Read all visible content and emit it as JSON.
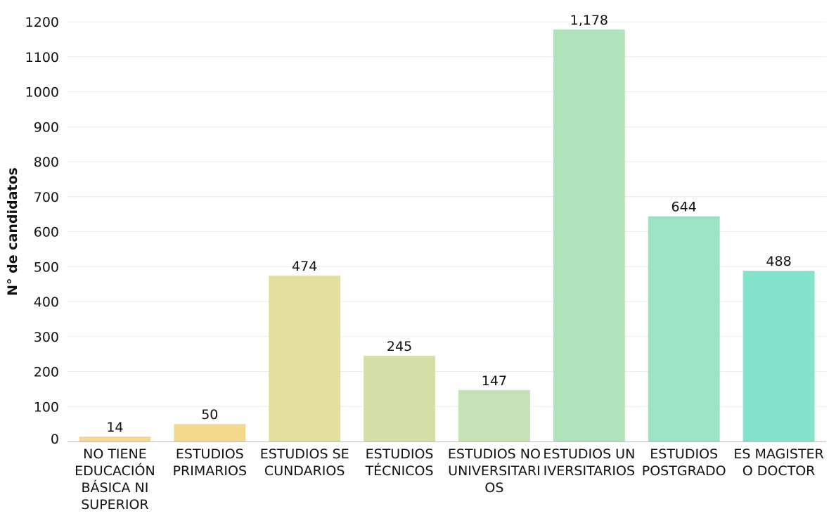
{
  "chart_data": {
    "type": "bar",
    "ylabel": "N° de candidatos",
    "xlabel": "",
    "title": "",
    "ylim": [
      0,
      1200
    ],
    "yticks": [
      0,
      100,
      200,
      300,
      400,
      500,
      600,
      700,
      800,
      900,
      1000,
      1100,
      1200
    ],
    "grid": true,
    "categories": [
      "NO TIENE EDUCACIÓN BÁSICA NI SUPERIOR",
      "ESTUDIOS PRIMARIOS",
      "ESTUDIOS SECUNDARIOS",
      "ESTUDIOS TÉCNICOS",
      "ESTUDIOS NO UNIVERSITARIOS",
      "ESTUDIOS UNIVERSITARIOS",
      "ESTUDIOS POSTGRADO",
      "ES MAGISTER O DOCTOR"
    ],
    "category_lines": [
      [
        "NO TIENE",
        "EDUCACIÓN",
        "BÁSICA NI",
        "SUPERIOR"
      ],
      [
        "ESTUDIOS",
        "PRIMARIOS"
      ],
      [
        "ESTUDIOS SE",
        "CUNDARIOS"
      ],
      [
        "ESTUDIOS",
        "TÉCNICOS"
      ],
      [
        "ESTUDIOS NO",
        "UNIVERSITARI",
        "OS"
      ],
      [
        "ESTUDIOS UN",
        "IVERSITARIOS"
      ],
      [
        "ESTUDIOS",
        "POSTGRADO"
      ],
      [
        "ES MAGISTER",
        "O DOCTOR"
      ]
    ],
    "values": [
      14,
      50,
      474,
      245,
      147,
      1178,
      644,
      488
    ],
    "value_labels": [
      "14",
      "50",
      "474",
      "245",
      "147",
      "1,178",
      "644",
      "488"
    ],
    "colors": [
      "#f7d893",
      "#f2d98c",
      "#e3df9f",
      "#d5e0a6",
      "#c4e2b4",
      "#b0e2bb",
      "#9be3c4",
      "#85e2cd"
    ]
  }
}
